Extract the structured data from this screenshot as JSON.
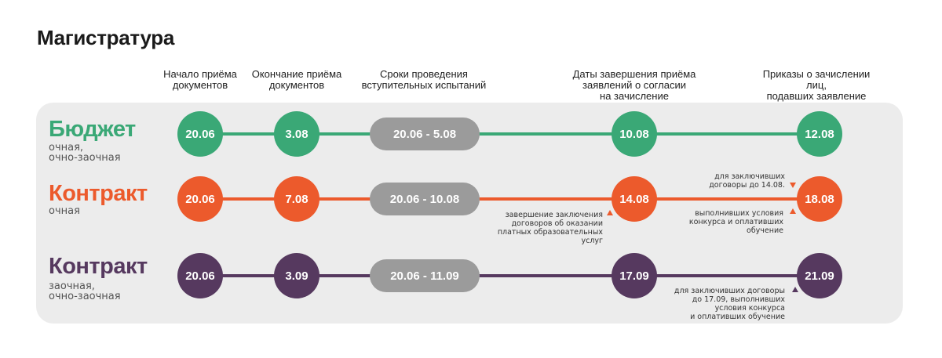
{
  "title": "Магистратура",
  "columns": [
    "Начало приёма\nдокументов",
    "Окончание приёма\nдокументов",
    "Сроки проведения\nвступительных испытаний",
    "Даты завершения приёма\nзаявлений о согласии\nна зачисление",
    "Приказы о зачислении лиц,\nподавших заявление\nо согласии на зачисление"
  ],
  "colors": {
    "green": "#3aa876",
    "orange": "#ec5a2c",
    "purple": "#56395f",
    "gray": "#9b9b9b",
    "panel": "#ececec"
  },
  "rows": [
    {
      "title": "Бюджет",
      "subtitle": "очная,\nочно-заочная",
      "start": "20.06",
      "end": "3.08",
      "exams": "20.06 - 5.08",
      "consent": "10.08",
      "order": "12.08"
    },
    {
      "title": "Контракт",
      "subtitle": "очная",
      "start": "20.06",
      "end": "7.08",
      "exams": "20.06 - 10.08",
      "consent": "14.08",
      "order": "18.08",
      "note_consent": "завершение заключения\nдоговоров об оказании\nплатных образовательных\nуслуг",
      "note_order_top": "для заключивших\nдоговоры до 14.08.",
      "note_order_bottom": "выполнивших условия\nконкурса и оплативших\nобучение"
    },
    {
      "title": "Контракт",
      "subtitle": "заочная,\nочно-заочная",
      "start": "20.06",
      "end": "3.09",
      "exams": "20.06 - 11.09",
      "consent": "17.09",
      "order": "21.09",
      "note_order": "для заключивших договоры\nдо 17.09, выполнивших\nусловия конкурса\nи оплативших обучение"
    }
  ]
}
